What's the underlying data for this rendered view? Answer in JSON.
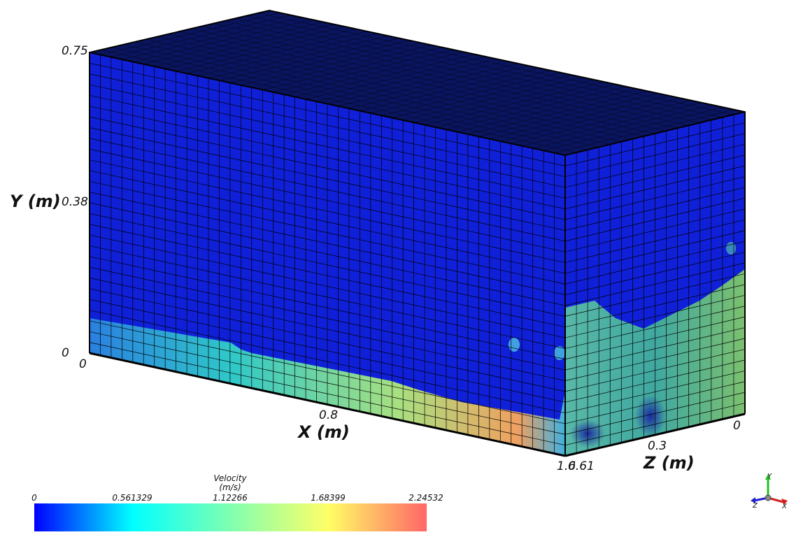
{
  "axes": {
    "y": {
      "title": "Y (m)",
      "ticks": [
        "0.75",
        "0.38",
        "0"
      ]
    },
    "x": {
      "title": "X (m)",
      "ticks": [
        "0",
        "0.8",
        "1.6"
      ]
    },
    "z": {
      "title": "Z (m)",
      "ticks": [
        "0",
        "0.3",
        "0.61"
      ]
    }
  },
  "colorbar": {
    "title": "Velocity",
    "unit": "(m/s)",
    "ticks": [
      "0",
      "0.561329",
      "1.12266",
      "1.68399",
      "2.24532"
    ],
    "min": 0,
    "max": 2.24532,
    "colormap": [
      "#0000ff",
      "#00ffff",
      "#ffff66",
      "#ff6666"
    ]
  },
  "orientation_triad": {
    "y": "Y",
    "z": "Z",
    "x": "X"
  },
  "colors": {
    "low": "#1020d8",
    "top_face": "#0a1560",
    "grid": "#000000",
    "flow_mid": "#30c0c8",
    "flow_high": "#f0a060"
  }
}
